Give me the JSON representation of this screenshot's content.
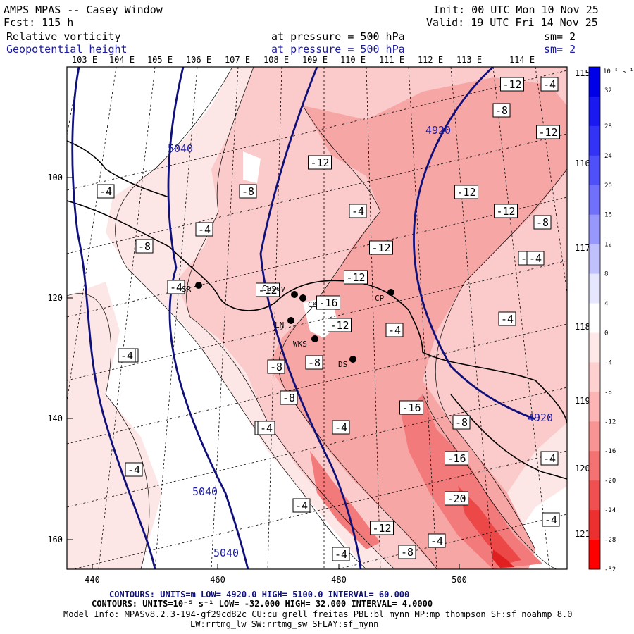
{
  "header": {
    "model_title": "AMPS MPAS -- Casey Window",
    "forecast": "Fcst:  115 h",
    "init": "Init: 00 UTC Mon 10 Nov 25",
    "valid": "Valid: 19 UTC Fri 14 Nov 25",
    "field1": {
      "name": "Relative vorticity",
      "level": "at pressure =  500 hPa",
      "smooth": "sm= 2"
    },
    "field2": {
      "name": "Geopotential height",
      "level": "at pressure =  500 hPa",
      "smooth": "sm= 2"
    }
  },
  "longitude_labels_top": [
    "103 E",
    "104 E",
    "105 E",
    "106 E",
    "107 E",
    "108 E",
    "109 E",
    "110 E",
    "111 E",
    "112 E",
    "113 E",
    "114 E"
  ],
  "longitude_labels_right": [
    "115 E",
    "116 E",
    "117 E",
    "118 E",
    "119 E",
    "120 E",
    "121 E"
  ],
  "x_axis": {
    "ticks": [
      "440",
      "460",
      "480",
      "500"
    ]
  },
  "y_axis": {
    "ticks": [
      "100",
      "120",
      "140",
      "160"
    ]
  },
  "colorbar": {
    "unit": "10⁻⁵ s⁻¹",
    "ticks": [
      "32",
      "28",
      "24",
      "20",
      "16",
      "12",
      "8",
      "4",
      "0",
      "-4",
      "-8",
      "-12",
      "-16",
      "-20",
      "-24",
      "-28",
      "-32"
    ],
    "colors": [
      "#0000e6",
      "#1a1af0",
      "#3333f5",
      "#5050f8",
      "#7070fa",
      "#9898fc",
      "#c0c0fd",
      "#e6e6ff",
      "#ffffff",
      "#ffe8e8",
      "#ffd0d0",
      "#fcb4b4",
      "#f89494",
      "#f47272",
      "#f05050",
      "#ec3030",
      "#ff0000"
    ]
  },
  "vorticity_labels": [
    "-12",
    "-4",
    "-8",
    "-12",
    "-12",
    "-12",
    "-4",
    "-12",
    "-8",
    "-4",
    "-8",
    "-4",
    "-8",
    "-12",
    "-8",
    "-12",
    "-4",
    "-16",
    "-4",
    "-4",
    "-12",
    "-8",
    "-4",
    "-16",
    "-8",
    "-4",
    "-4",
    "-8",
    "-4",
    "-16",
    "-4",
    "-4",
    "-20",
    "-4",
    "-4",
    "-12",
    "-4",
    "-8",
    "-4",
    "-8",
    "-12",
    "-4",
    "-4"
  ],
  "height_labels": [
    "5040",
    "4920",
    "4920",
    "5040",
    "5040"
  ],
  "stations": [
    "SR",
    "Casey",
    "CS",
    "LN",
    "WKS",
    "DS",
    "CP"
  ],
  "footer": {
    "contours_height": "CONTOURS:  UNITS=m  LOW=  4920.0       HIGH=  5100.0       INTERVAL=   60.000",
    "contours_vort": "CONTOURS:  UNITS=10⁻⁵ s⁻¹  LOW= -32.000        HIGH=  32.000       INTERVAL=   4.0000",
    "model_info": "Model Info: MPASv8.2.3-194-gf29cd82c CU:cu_grell_freitas PBL:bl_mynn MP:mp_thompson SF:sf_noahmp 8.0",
    "model_info2": "LW:rrtmg_lw SW:rrtmg_sw SFLAY:sf_mynn"
  }
}
